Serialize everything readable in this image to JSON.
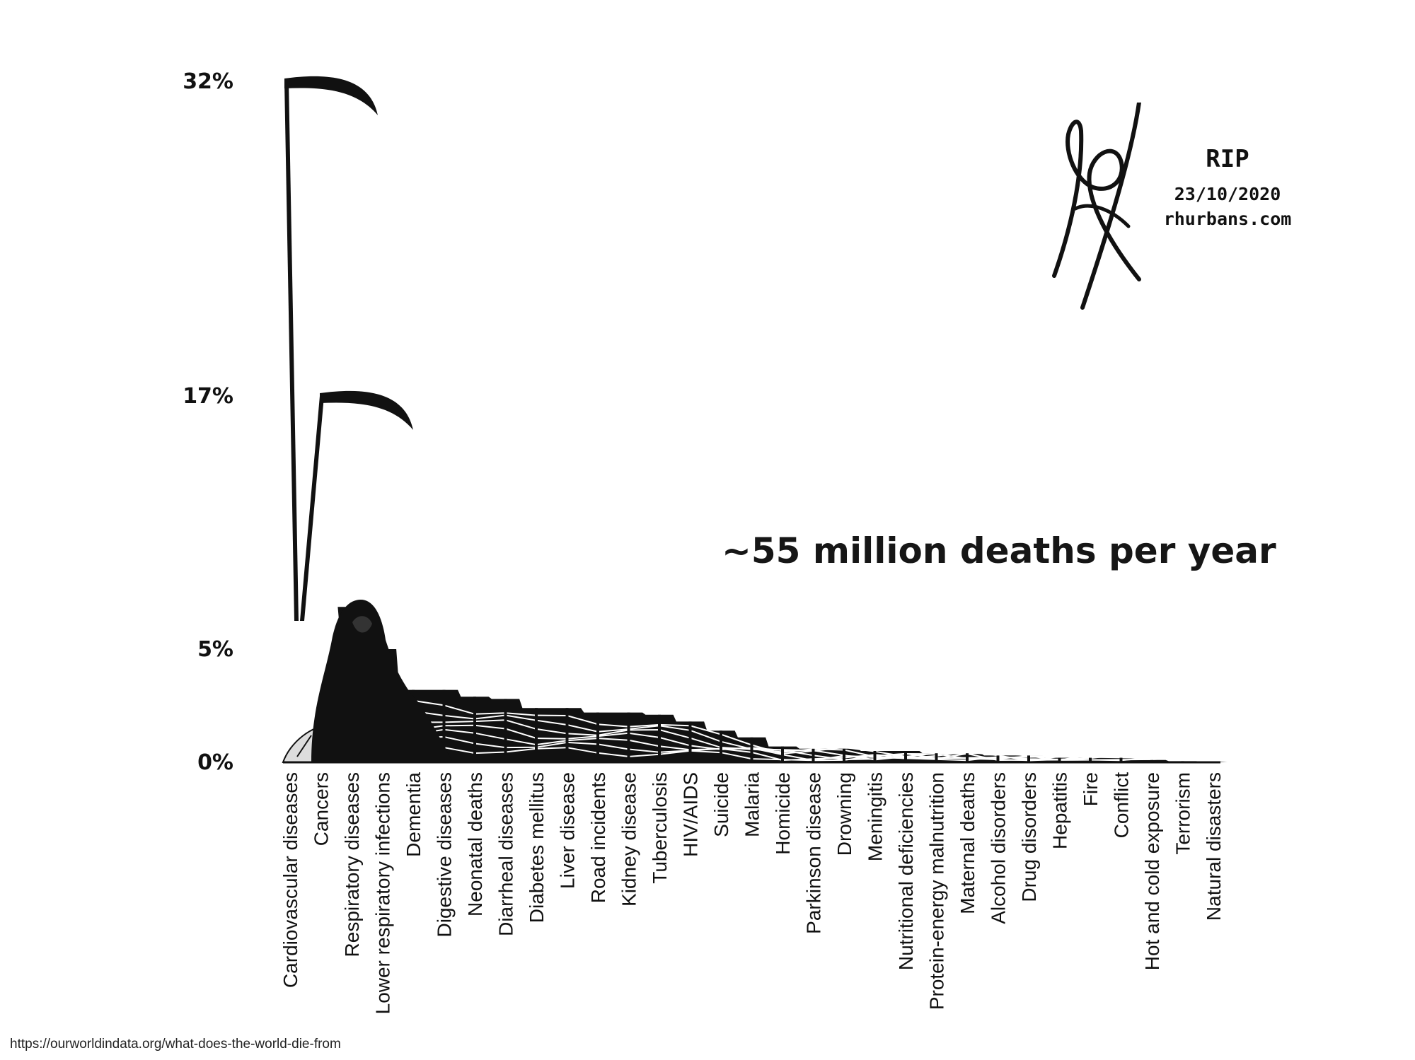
{
  "chart_data": {
    "type": "area",
    "title": "~55 million deaths per year",
    "units": "% of deaths",
    "ylim": [
      0,
      32
    ],
    "yticks": [
      {
        "value": 0,
        "label": "0%"
      },
      {
        "value": 5,
        "label": "5%"
      },
      {
        "value": 17,
        "label": "17%"
      },
      {
        "value": 32,
        "label": "32%"
      }
    ],
    "categories": [
      "Cardiovascular diseases",
      "Cancers",
      "Respiratory diseases",
      "Lower respiratory infections",
      "Dementia",
      "Digestive diseases",
      "Neonatal deaths",
      "Diarrheal diseases",
      "Diabetes mellitus",
      "Liver disease",
      "Road incidents",
      "Kidney disease",
      "Tuberculosis",
      "HIV/AIDS",
      "Suicide",
      "Malaria",
      "Homicide",
      "Parkinson disease",
      "Drowning",
      "Meningitis",
      "Nutritional deficiencies",
      "Protein-energy malnutrition",
      "Maternal deaths",
      "Alcohol disorders",
      "Drug disorders",
      "Hepatitis",
      "Fire",
      "Conflict",
      "Hot and cold exposure",
      "Terrorism",
      "Natural disasters"
    ],
    "values": [
      32,
      17,
      7,
      5,
      3.2,
      3.2,
      2.9,
      2.8,
      2.4,
      2.4,
      2.2,
      2.2,
      2.1,
      1.8,
      1.4,
      1.1,
      0.7,
      0.6,
      0.6,
      0.5,
      0.5,
      0.4,
      0.4,
      0.3,
      0.3,
      0.2,
      0.2,
      0.2,
      0.1,
      0.05,
      0.02
    ],
    "xlabel": "",
    "ylabel": ""
  },
  "signature": {
    "rip": "RIP",
    "date": "23/10/2020",
    "site": "rhurbans.com"
  },
  "source_url": "https://ourworldindata.org/what-does-the-world-die-from",
  "colors": {
    "ink": "#111111",
    "paper": "#ffffff",
    "rock": "#dddddd"
  }
}
